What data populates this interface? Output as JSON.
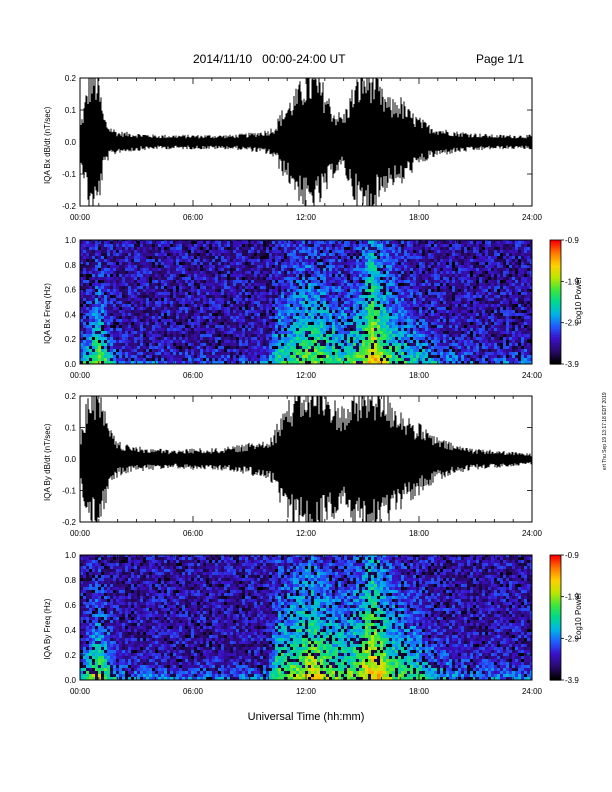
{
  "header": {
    "title": "2014/11/10   00:00-24:00 UT",
    "page": "Page 1/1"
  },
  "stamp": "ert Thu Sep 19 13:17:18 EDT 2019",
  "x_axis_title": "Universal Time (hh:mm)",
  "x_ticks": [
    "00:00",
    "06:00",
    "12:00",
    "18:00",
    "24:00"
  ],
  "panels": [
    {
      "ylabel": "IQA Bx dB/dt (nT/sec)",
      "yticks": [
        "-0.2",
        "-0.1",
        "0.0",
        "0.1",
        "0.2"
      ]
    },
    {
      "ylabel": "IQA Bx Freq (Hz)",
      "yticks": [
        "0.0",
        "0.2",
        "0.4",
        "0.6",
        "0.8",
        "1.0"
      ]
    },
    {
      "ylabel": "IQA By dB/dt (nT/sec)",
      "yticks": [
        "-0.2",
        "-0.1",
        "0.0",
        "0.1",
        "0.2"
      ]
    },
    {
      "ylabel": "IQA By Freq (Hz)",
      "yticks": [
        "0.0",
        "0.2",
        "0.4",
        "0.6",
        "0.8",
        "1.0"
      ]
    }
  ],
  "colorbar": {
    "label": "Log10 Power",
    "ticks": [
      "-0.9",
      "-1.9",
      "-2.9",
      "-3.9"
    ],
    "range": [
      -3.9,
      -0.9
    ]
  },
  "colors": {
    "trace": "#000000",
    "background": "#240854",
    "scale": [
      "#000000",
      "#2b0a6e",
      "#3a10c8",
      "#1f5cff",
      "#00b4e6",
      "#00d890",
      "#3fe63a",
      "#bde600",
      "#ffd000",
      "#ff7a00",
      "#ff0000"
    ]
  },
  "chart_data": [
    {
      "type": "line",
      "title": "IQA Bx dB/dt",
      "xlabel": "",
      "ylabel": "IQA Bx dB/dt (nT/sec)",
      "xlim": [
        0,
        24
      ],
      "ylim": [
        -0.2,
        0.2
      ],
      "x_unit": "hours UT",
      "envelope_amplitude": {
        "x": [
          0,
          0.25,
          0.5,
          0.75,
          1.0,
          1.25,
          1.5,
          1.75,
          2,
          3,
          4,
          5,
          6,
          7,
          8,
          9,
          10,
          10.4,
          10.6,
          11,
          11.5,
          12,
          12.5,
          13,
          13.5,
          14,
          14.5,
          15,
          15.5,
          16,
          16.5,
          17,
          17.5,
          18,
          18.5,
          19,
          20,
          21,
          22,
          23,
          24
        ],
        "y": [
          0.04,
          0.12,
          0.2,
          0.22,
          0.18,
          0.08,
          0.05,
          0.04,
          0.03,
          0.025,
          0.02,
          0.02,
          0.02,
          0.02,
          0.02,
          0.025,
          0.035,
          0.05,
          0.08,
          0.11,
          0.15,
          0.2,
          0.2,
          0.16,
          0.09,
          0.08,
          0.16,
          0.21,
          0.22,
          0.15,
          0.12,
          0.13,
          0.09,
          0.07,
          0.05,
          0.04,
          0.03,
          0.025,
          0.02,
          0.02,
          0.02
        ]
      }
    },
    {
      "type": "heatmap",
      "title": "IQA Bx Freq",
      "xlabel": "",
      "ylabel": "IQA Bx Freq (Hz)",
      "xlim": [
        0,
        24
      ],
      "ylim": [
        0.0,
        1.0
      ],
      "colorbar_label": "Log10 Power",
      "colorbar_range": [
        -3.9,
        -0.9
      ],
      "x_hours": [
        0,
        0.5,
        1,
        1.5,
        2,
        3,
        4,
        5,
        6,
        7,
        8,
        9,
        10,
        10.5,
        11,
        11.5,
        12,
        12.5,
        13,
        13.5,
        14,
        14.5,
        15,
        15.5,
        16,
        16.5,
        17,
        17.5,
        18,
        19,
        20,
        21,
        22,
        23,
        24
      ],
      "intensity": [
        0.35,
        0.5,
        0.7,
        0.45,
        0.25,
        0.2,
        0.2,
        0.18,
        0.18,
        0.18,
        0.18,
        0.2,
        0.22,
        0.45,
        0.45,
        0.5,
        0.6,
        0.6,
        0.55,
        0.5,
        0.45,
        0.5,
        0.6,
        0.85,
        0.7,
        0.55,
        0.5,
        0.45,
        0.4,
        0.3,
        0.22,
        0.2,
        0.2,
        0.2,
        0.2
      ],
      "width_hz": [
        0.12,
        0.2,
        0.35,
        0.2,
        0.08,
        0.05,
        0.05,
        0.05,
        0.05,
        0.05,
        0.05,
        0.05,
        0.06,
        0.4,
        0.4,
        0.45,
        0.5,
        0.5,
        0.45,
        0.4,
        0.35,
        0.4,
        0.5,
        0.85,
        0.6,
        0.45,
        0.35,
        0.3,
        0.25,
        0.15,
        0.1,
        0.08,
        0.08,
        0.08,
        0.08
      ]
    },
    {
      "type": "line",
      "title": "IQA By dB/dt",
      "xlabel": "",
      "ylabel": "IQA By dB/dt (nT/sec)",
      "xlim": [
        0,
        24
      ],
      "ylim": [
        -0.2,
        0.2
      ],
      "x_unit": "hours UT",
      "envelope_amplitude": {
        "x": [
          0,
          0.25,
          0.5,
          0.75,
          1.0,
          1.25,
          1.5,
          1.75,
          2,
          2.5,
          3,
          4,
          5,
          6,
          7,
          8,
          9,
          10,
          10.4,
          10.6,
          11,
          11.5,
          12,
          12.5,
          13,
          13.5,
          14,
          14.5,
          15,
          15.5,
          16,
          16.5,
          17,
          17.5,
          18,
          18.5,
          19,
          20,
          21,
          22,
          23,
          24
        ],
        "y": [
          0.06,
          0.14,
          0.2,
          0.22,
          0.2,
          0.15,
          0.1,
          0.07,
          0.05,
          0.04,
          0.035,
          0.03,
          0.025,
          0.03,
          0.03,
          0.035,
          0.045,
          0.06,
          0.09,
          0.13,
          0.16,
          0.2,
          0.22,
          0.22,
          0.2,
          0.17,
          0.15,
          0.18,
          0.2,
          0.22,
          0.2,
          0.17,
          0.15,
          0.12,
          0.1,
          0.08,
          0.06,
          0.04,
          0.03,
          0.025,
          0.02,
          0.015
        ]
      }
    },
    {
      "type": "heatmap",
      "title": "IQA By Freq",
      "xlabel": "",
      "ylabel": "IQA By Freq (Hz)",
      "xlim": [
        0,
        24
      ],
      "ylim": [
        0.0,
        1.0
      ],
      "colorbar_label": "Log10 Power",
      "colorbar_range": [
        -3.9,
        -0.9
      ],
      "x_hours": [
        0,
        0.5,
        1,
        1.5,
        2,
        3,
        4,
        5,
        6,
        7,
        8,
        9,
        10,
        10.5,
        11,
        11.5,
        12,
        12.5,
        13,
        13.5,
        14,
        14.5,
        15,
        15.5,
        16,
        16.5,
        17,
        17.5,
        18,
        19,
        20,
        21,
        22,
        23,
        24
      ],
      "intensity": [
        0.4,
        0.6,
        0.75,
        0.5,
        0.3,
        0.25,
        0.28,
        0.25,
        0.22,
        0.22,
        0.22,
        0.25,
        0.28,
        0.55,
        0.55,
        0.6,
        0.75,
        0.75,
        0.65,
        0.6,
        0.55,
        0.6,
        0.7,
        0.85,
        0.75,
        0.6,
        0.55,
        0.5,
        0.45,
        0.35,
        0.28,
        0.25,
        0.22,
        0.22,
        0.22
      ],
      "width_hz": [
        0.15,
        0.25,
        0.35,
        0.25,
        0.1,
        0.07,
        0.07,
        0.06,
        0.06,
        0.06,
        0.06,
        0.06,
        0.08,
        0.5,
        0.5,
        0.55,
        0.6,
        0.6,
        0.5,
        0.45,
        0.45,
        0.5,
        0.6,
        0.9,
        0.65,
        0.5,
        0.4,
        0.35,
        0.3,
        0.2,
        0.12,
        0.1,
        0.1,
        0.1,
        0.1
      ]
    }
  ]
}
